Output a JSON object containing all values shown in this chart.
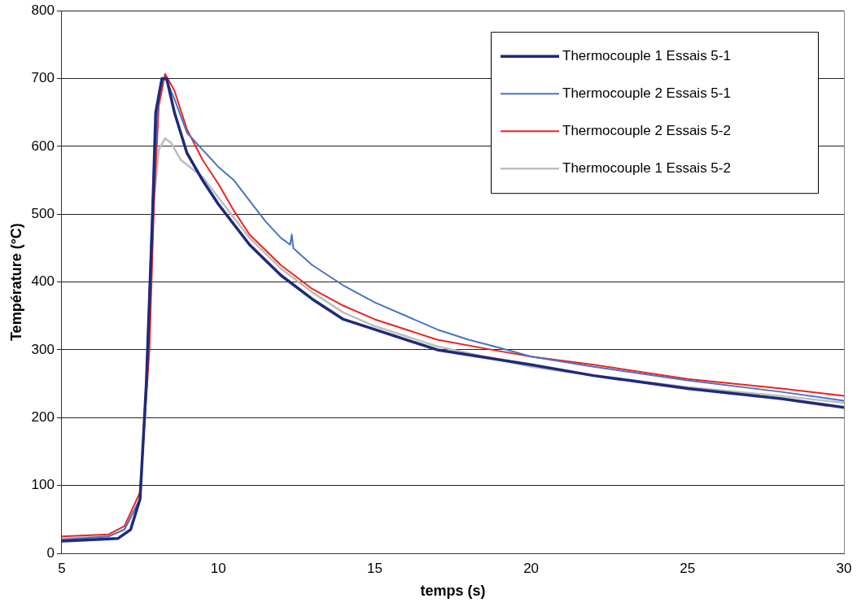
{
  "chart_data": {
    "type": "line",
    "xlabel": "temps (s)",
    "ylabel": "Température (°C)",
    "xlim": [
      5,
      30
    ],
    "xticks": [
      5,
      10,
      15,
      20,
      25,
      30
    ],
    "ylim": [
      0,
      800
    ],
    "yticks": [
      0,
      100,
      200,
      300,
      400,
      500,
      600,
      700,
      800
    ],
    "grid": "y",
    "legend": "top right",
    "marker": "none",
    "line_style": "solid",
    "series": [
      {
        "name": "Thermocouple 1 Essais 5-1",
        "color": "#1f2a7a",
        "x": [
          5,
          6,
          6.8,
          7.2,
          7.5,
          7.7,
          7.9,
          8,
          8.2,
          8.35,
          8.6,
          9,
          9.5,
          10,
          10.5,
          11,
          12,
          13,
          14,
          15,
          17,
          20,
          22,
          25,
          28,
          30
        ],
        "values": [
          18,
          20,
          22,
          35,
          80,
          250,
          500,
          650,
          700,
          700,
          650,
          590,
          550,
          515,
          485,
          455,
          410,
          375,
          345,
          330,
          300,
          278,
          262,
          243,
          228,
          215
        ]
      },
      {
        "name": "Thermocouple 2 Essais 5-1",
        "color": "#4a72c4",
        "x": [
          5,
          6.5,
          7,
          7.5,
          7.7,
          7.9,
          8.1,
          8.3,
          8.6,
          9,
          9.5,
          10,
          10.5,
          11,
          11.5,
          12,
          12.3,
          12.35,
          12.4,
          13,
          14,
          15,
          16,
          17,
          18,
          19,
          20,
          22,
          25,
          28,
          30
        ],
        "values": [
          20,
          25,
          35,
          80,
          250,
          520,
          680,
          702,
          670,
          620,
          595,
          570,
          550,
          520,
          490,
          465,
          455,
          470,
          450,
          425,
          395,
          370,
          350,
          330,
          315,
          303,
          290,
          275,
          255,
          238,
          225
        ]
      },
      {
        "name": "Thermocouple 2 Essais 5-2",
        "color": "#ee2222",
        "x": [
          5,
          6.5,
          7,
          7.5,
          7.8,
          7.95,
          8.1,
          8.3,
          8.6,
          9,
          9.5,
          10,
          10.5,
          11,
          12,
          13,
          14,
          15,
          17,
          19,
          20,
          22,
          25,
          28,
          30
        ],
        "values": [
          25,
          28,
          40,
          90,
          300,
          520,
          660,
          707,
          682,
          625,
          580,
          545,
          505,
          470,
          425,
          390,
          365,
          345,
          315,
          298,
          290,
          278,
          257,
          243,
          232
        ]
      },
      {
        "name": "Thermocouple 1 Essais 5-2",
        "color": "#bdbdbd",
        "x": [
          5,
          6.5,
          7,
          7.5,
          7.7,
          7.9,
          8.1,
          8.3,
          8.5,
          8.8,
          9.5,
          10,
          10.5,
          11,
          12,
          13,
          14,
          15,
          17,
          20,
          22,
          25,
          28,
          30
        ],
        "values": [
          22,
          25,
          35,
          80,
          250,
          500,
          595,
          612,
          605,
          580,
          555,
          525,
          495,
          465,
          420,
          385,
          355,
          335,
          305,
          275,
          262,
          245,
          232,
          222
        ]
      }
    ]
  }
}
